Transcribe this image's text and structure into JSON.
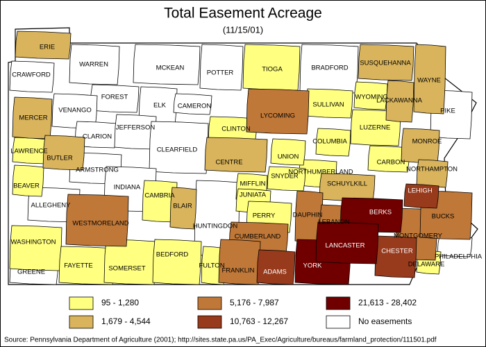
{
  "title": "Total Easement Acreage",
  "subtitle": "(11/15/01)",
  "legend": [
    {
      "label": "95 - 1,280",
      "color": "#ffff80",
      "label_color": "#000000",
      "counties": [
        "TIOGA",
        "SULLIVAN",
        "WYOMING",
        "LUZERNE",
        "CARBON",
        "COLUMBIA",
        "NORTHUMBERLAND",
        "UNION",
        "SNYDER",
        "MIFFLIN",
        "JUNIATA",
        "CLINTON",
        "LAWRENCE",
        "BEAVER",
        "WASHINGTON",
        "FAYETTE",
        "SOMERSET",
        "BEDFORD",
        "FULTON",
        "CAMBRIA",
        "PERRY",
        "DELAWARE"
      ]
    },
    {
      "label": "1,679 - 4,544",
      "color": "#d9b45c",
      "label_color": "#000000",
      "counties": [
        "ERIE",
        "SUSQUEHANNA",
        "WAYNE",
        "LACKAWANNA",
        "MERCER",
        "BUTLER",
        "CENTRE",
        "BLAIR",
        "MONROE",
        "NORTHAMPTON",
        "SCHUYLKILL"
      ]
    },
    {
      "label": "5,176 - 7,987",
      "color": "#c07838",
      "label_color": "#000000",
      "counties": [
        "LYCOMING",
        "WESTMORELAND",
        "DAUPHIN",
        "LEBANON",
        "CUMBERLAND",
        "FRANKLIN",
        "MONTGOMERY",
        "BUCKS"
      ]
    },
    {
      "label": "10,763 - 12,267",
      "color": "#983a1c",
      "label_color": "#ffffff",
      "counties": [
        "LEHIGH",
        "ADAMS",
        "CHESTER"
      ]
    },
    {
      "label": "21,613 - 28,402",
      "color": "#700000",
      "label_color": "#ffffff",
      "counties": [
        "BERKS",
        "YORK",
        "LANCASTER"
      ]
    },
    {
      "label": "No easements",
      "color": "#ffffff",
      "label_color": "#000000",
      "counties": [
        "CRAWFORD",
        "WARREN",
        "MCKEAN",
        "POTTER",
        "BRADFORD",
        "FOREST",
        "ELK",
        "CAMERON",
        "VENANGO",
        "CLARION",
        "JEFFERSON",
        "CLEARFIELD",
        "ARMSTRONG",
        "INDIANA",
        "ALLEGHENY",
        "GREENE",
        "HUNTINGDON",
        "PIKE",
        "PHILADELPHIA"
      ]
    }
  ],
  "source": "Source: Pennsylvania Department of Agriculture (2001); http://sites.state.pa.us/PA_Exec/Agriculture/bureaus/farmland_protection/111501.pdf"
}
